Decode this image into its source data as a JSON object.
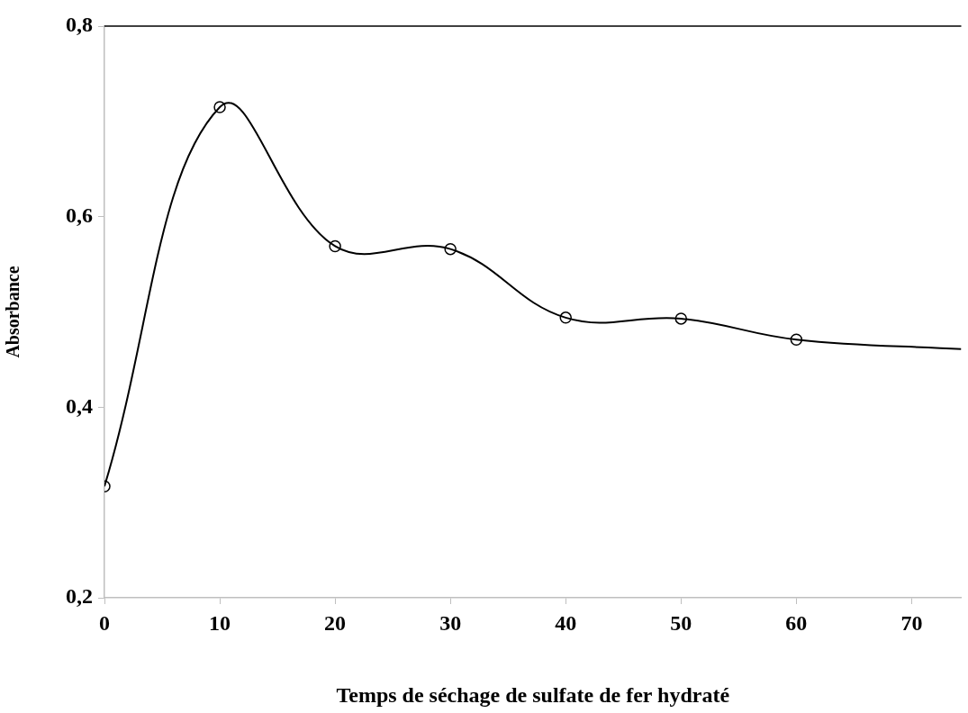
{
  "chart_data": {
    "type": "line",
    "xlabel": "Temps de séchage de sulfate de fer hydraté",
    "ylabel": "Absorbance",
    "series": [
      {
        "color": "#000000",
        "marker": "none",
        "x": [
          0,
          10,
          20,
          30,
          40,
          50,
          60,
          74.3
        ],
        "values": [
          0.317,
          0.715,
          0.569,
          0.566,
          0.494,
          0.493,
          0.471,
          0.461
        ]
      },
      {
        "type": "scatter",
        "color": "#000000",
        "marker": "circle",
        "x": [
          0,
          10,
          20,
          30,
          40,
          50,
          60
        ],
        "values": [
          0.317,
          0.715,
          0.569,
          0.566,
          0.494,
          0.493,
          0.471
        ]
      }
    ],
    "xlim": [
      0,
      74.3
    ],
    "xticks": [
      0,
      10,
      20,
      30,
      40,
      50,
      60,
      70
    ],
    "ylim": [
      0.2,
      0.8
    ],
    "yticks": [
      {
        "value": 0.2,
        "label": "0,2"
      },
      {
        "value": 0.4,
        "label": "0,4"
      },
      {
        "value": 0.6,
        "label": "0,6"
      },
      {
        "value": 0.8,
        "label": "0,8"
      }
    ],
    "grid": false,
    "legend": false
  }
}
